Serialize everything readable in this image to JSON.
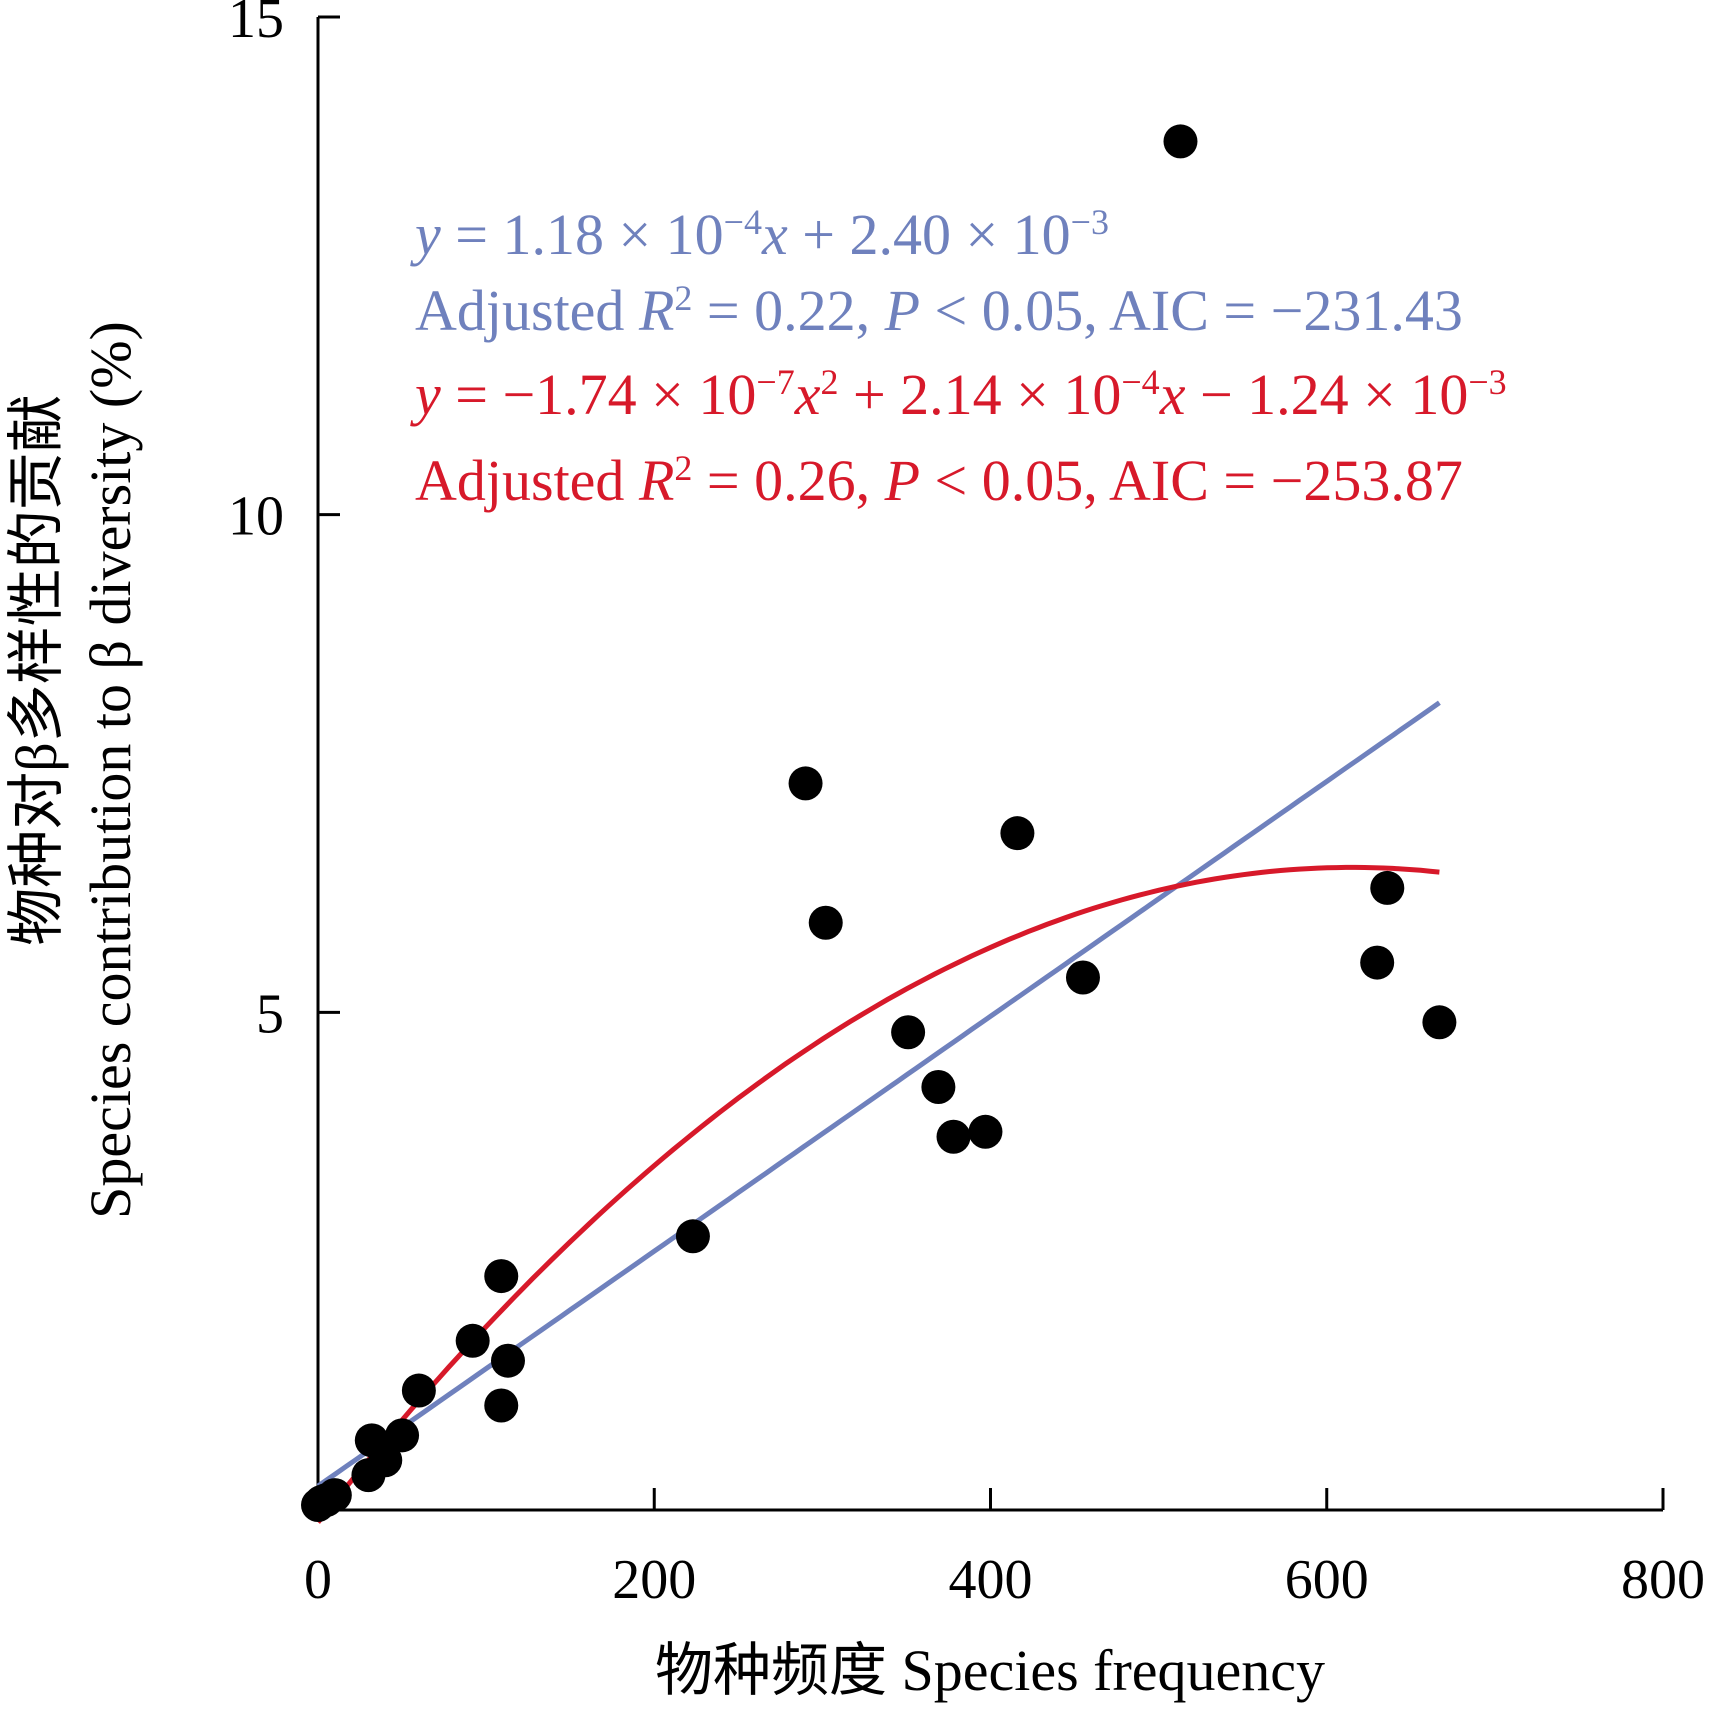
{
  "chart_data": {
    "type": "scatter",
    "xlabel": "物种频度 Species frequency",
    "ylabel_line1": "物种对β多样性的贡献",
    "ylabel_line2": "Species contribution to β diversity (%)",
    "xlim": [
      0,
      800
    ],
    "ylim": [
      0,
      15
    ],
    "x_ticks": [
      0,
      200,
      400,
      600,
      800
    ],
    "y_ticks": [
      5,
      10,
      15
    ],
    "points": [
      {
        "x": 0,
        "y": 0.05
      },
      {
        "x": 2,
        "y": 0.08
      },
      {
        "x": 5,
        "y": 0.1
      },
      {
        "x": 10,
        "y": 0.15
      },
      {
        "x": 30,
        "y": 0.35
      },
      {
        "x": 32,
        "y": 0.7
      },
      {
        "x": 40,
        "y": 0.5
      },
      {
        "x": 50,
        "y": 0.75
      },
      {
        "x": 60,
        "y": 1.2
      },
      {
        "x": 92,
        "y": 1.7
      },
      {
        "x": 109,
        "y": 2.35
      },
      {
        "x": 109,
        "y": 1.05
      },
      {
        "x": 113,
        "y": 1.5
      },
      {
        "x": 223,
        "y": 2.75
      },
      {
        "x": 290,
        "y": 7.3
      },
      {
        "x": 302,
        "y": 5.9
      },
      {
        "x": 351,
        "y": 4.8
      },
      {
        "x": 369,
        "y": 4.25
      },
      {
        "x": 378,
        "y": 3.75
      },
      {
        "x": 397,
        "y": 3.8
      },
      {
        "x": 416,
        "y": 6.8
      },
      {
        "x": 455,
        "y": 5.35
      },
      {
        "x": 513,
        "y": 13.75
      },
      {
        "x": 630,
        "y": 5.5
      },
      {
        "x": 636,
        "y": 6.25
      },
      {
        "x": 667,
        "y": 4.9
      }
    ],
    "series": [
      {
        "name": "linear",
        "color": "#6f81bd",
        "model": "linear",
        "slope_pct": 0.0118,
        "intercept_pct": 0.24,
        "x_range": [
          0,
          667
        ]
      },
      {
        "name": "quadratic",
        "color": "#d7192a",
        "model": "quadratic",
        "a_pct": -1.74e-05,
        "b_pct": 0.0214,
        "c_pct": -0.124,
        "x_range": [
          0,
          667
        ]
      }
    ],
    "annotations": {
      "linear_eq": {
        "y": "y",
        "mid": " = 1.18 × 10",
        "exp1": "−4",
        "x": "x",
        "tail": " + 2.40 × 10",
        "exp2": "−3"
      },
      "linear_stats": {
        "pre": "Adjusted ",
        "R": "R",
        "sup": "2",
        "mid": " = 0.22, ",
        "P": "P",
        "tail": " < 0.05, AIC = −231.43"
      },
      "quad_eq": {
        "y": "y",
        "mid": " = −1.74 × 10",
        "exp1": "−7",
        "x1": "x",
        "sup": "2",
        "mid2": " + 2.14 × 10",
        "exp2": "−4",
        "x2": "x",
        "tail": " − 1.24 × 10",
        "exp3": "−3"
      },
      "quad_stats": {
        "pre": "Adjusted ",
        "R": "R",
        "sup": "2",
        "mid": " = 0.26, ",
        "P": "P",
        "tail": " < 0.05, AIC = −253.87"
      }
    }
  },
  "colors": {
    "linear": "#6f81bd",
    "quadratic": "#d7192a",
    "points": "#000000",
    "axis": "#000000"
  }
}
